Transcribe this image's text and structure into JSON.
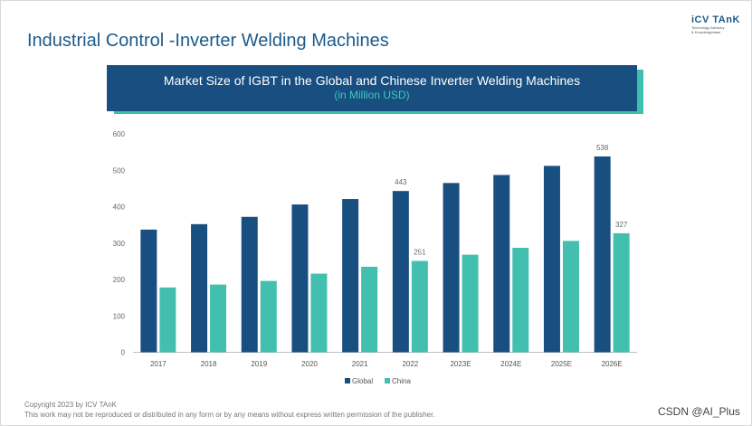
{
  "page": {
    "title": "Industrial Control -Inverter Welding Machines",
    "logo_name": "iCV TAnK",
    "logo_line1": "Technology Advisory",
    "logo_line2": "& Knowledgebase",
    "copyright_line1": "Copyright  2023 by ICV TAnK",
    "copyright_line2": "This work may not be reproduced or distributed in any form or by any means without express written permission of the publisher.",
    "watermark": "CSDN @AI_Plus"
  },
  "chart_data": {
    "type": "bar",
    "title": "Market Size of IGBT in the Global and Chinese Inverter Welding Machines",
    "subtitle": "(in Million USD)",
    "categories": [
      "2017",
      "2018",
      "2019",
      "2020",
      "2021",
      "2022",
      "2023E",
      "2024E",
      "2025E",
      "2026E"
    ],
    "series": [
      {
        "name": "Global",
        "color": "#184f80",
        "values": [
          337,
          352,
          372,
          406,
          421,
          443,
          465,
          487,
          512,
          538
        ]
      },
      {
        "name": "China",
        "color": "#43bfb0",
        "values": [
          178,
          186,
          196,
          216,
          235,
          251,
          268,
          287,
          306,
          327
        ]
      }
    ],
    "data_labels": [
      {
        "series": "Global",
        "category": "2022",
        "label": "443"
      },
      {
        "series": "Global",
        "category": "2026E",
        "label": "538"
      },
      {
        "series": "China",
        "category": "2022",
        "label": "251"
      },
      {
        "series": "China",
        "category": "2026E",
        "label": "327"
      }
    ],
    "yticks": [
      "0",
      "100",
      "200",
      "300",
      "400",
      "500",
      "600"
    ],
    "ylim": [
      0,
      600
    ],
    "grid": false,
    "legend_position": "bottom"
  }
}
